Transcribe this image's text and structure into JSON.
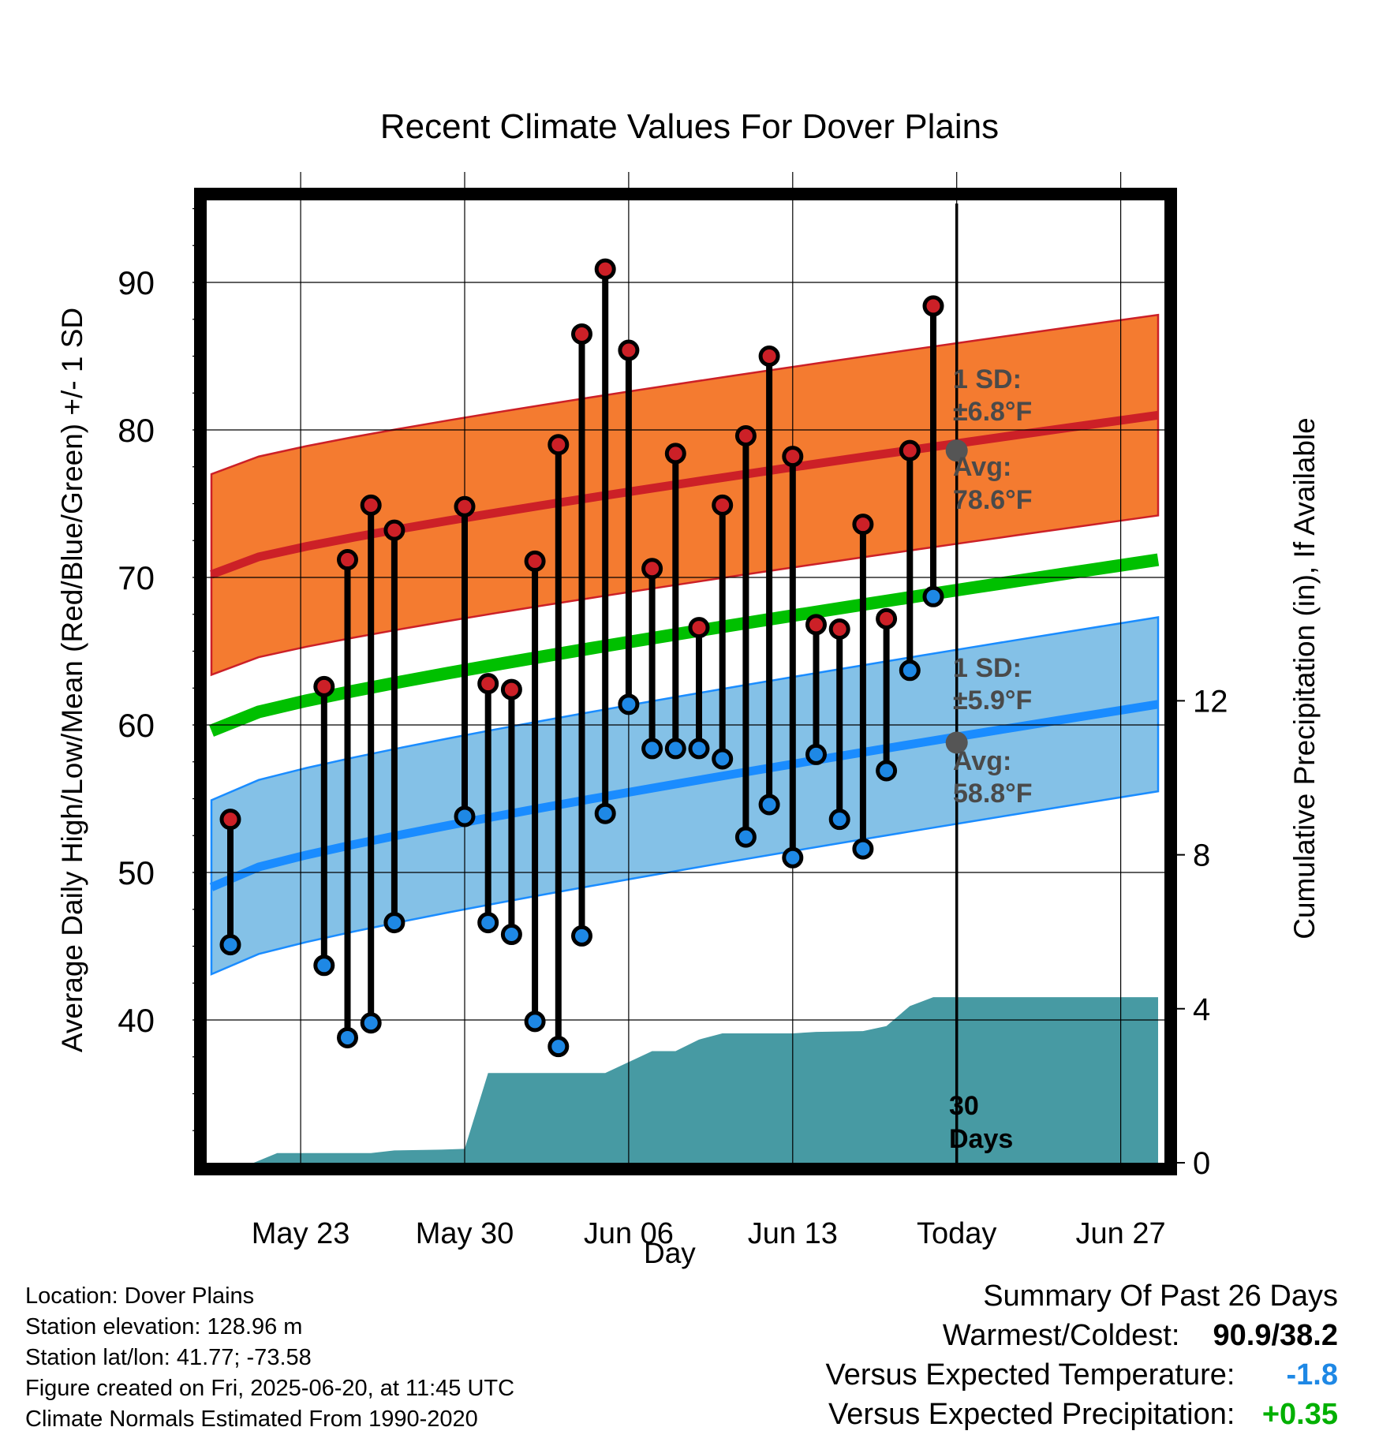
{
  "title": "Recent Climate Values For Dover Plains",
  "y_label_left": "Average Daily High/Low/Mean (Red/Blue/Green) +/- 1 SD",
  "y_label_right": "Cumulative Precipitation (in), If Available",
  "x_label": "Day",
  "colors": {
    "high_band": "#f47b30",
    "high_line": "#cc2027",
    "low_band": "#84c1e7",
    "low_line": "#1a8cff",
    "mean_line": "#00c000",
    "precip": "#479aa3",
    "high_marker": "#cc2027",
    "low_marker": "#1e88e5",
    "annotation": "#4a4a4a",
    "temp_diff": "#1e88e5",
    "precip_diff": "#00b000"
  },
  "chart_data": {
    "type": "line",
    "x_ticks": [
      "May 23",
      "May 30",
      "Jun 06",
      "Jun 13",
      "Today",
      "Jun 27"
    ],
    "y_ticks_left": [
      40,
      50,
      60,
      70,
      80,
      90
    ],
    "y_ticks_right": [
      0,
      4,
      8,
      12
    ],
    "ylim_left": [
      30,
      96
    ],
    "ylim_right": [
      0,
      25
    ],
    "days": [
      "2025-05-20",
      "2025-05-21",
      "2025-05-22",
      "2025-05-23",
      "2025-05-24",
      "2025-05-25",
      "2025-05-26",
      "2025-05-27",
      "2025-05-28",
      "2025-05-29",
      "2025-05-30",
      "2025-05-31",
      "2025-06-01",
      "2025-06-02",
      "2025-06-03",
      "2025-06-04",
      "2025-06-05",
      "2025-06-06",
      "2025-06-07",
      "2025-06-08",
      "2025-06-09",
      "2025-06-10",
      "2025-06-11",
      "2025-06-12",
      "2025-06-13",
      "2025-06-14",
      "2025-06-15",
      "2025-06-16",
      "2025-06-17",
      "2025-06-18",
      "2025-06-19",
      "2025-06-20",
      "2025-06-21",
      "2025-06-22",
      "2025-06-23",
      "2025-06-24",
      "2025-06-25",
      "2025-06-26",
      "2025-06-27",
      "2025-06-28",
      "2025-06-29",
      "2025-06-30"
    ],
    "today": "2025-06-20",
    "observations": [
      {
        "day": "2025-05-20",
        "high": 53.6,
        "low": 45.1
      },
      {
        "day": "2025-05-24",
        "high": 62.6,
        "low": 43.7
      },
      {
        "day": "2025-05-25",
        "high": 71.2,
        "low": 38.8
      },
      {
        "day": "2025-05-26",
        "high": 74.9,
        "low": 39.8
      },
      {
        "day": "2025-05-27",
        "high": 73.2,
        "low": 46.6
      },
      {
        "day": "2025-05-30",
        "high": 74.8,
        "low": 53.8
      },
      {
        "day": "2025-05-31",
        "high": 62.8,
        "low": 46.6
      },
      {
        "day": "2025-06-01",
        "high": 62.4,
        "low": 45.8
      },
      {
        "day": "2025-06-02",
        "high": 71.1,
        "low": 39.9
      },
      {
        "day": "2025-06-03",
        "high": 79.0,
        "low": 38.2
      },
      {
        "day": "2025-06-04",
        "high": 86.5,
        "low": 45.7
      },
      {
        "day": "2025-06-05",
        "high": 90.9,
        "low": 54.0
      },
      {
        "day": "2025-06-06",
        "high": 85.4,
        "low": 61.4
      },
      {
        "day": "2025-06-07",
        "high": 70.6,
        "low": 58.4
      },
      {
        "day": "2025-06-08",
        "high": 78.4,
        "low": 58.4
      },
      {
        "day": "2025-06-09",
        "high": 66.6,
        "low": 58.4
      },
      {
        "day": "2025-06-10",
        "high": 74.9,
        "low": 57.7
      },
      {
        "day": "2025-06-11",
        "high": 79.6,
        "low": 52.4
      },
      {
        "day": "2025-06-12",
        "high": 85.0,
        "low": 54.6
      },
      {
        "day": "2025-06-13",
        "high": 78.2,
        "low": 51.0
      },
      {
        "day": "2025-06-14",
        "high": 66.8,
        "low": 58.0
      },
      {
        "day": "2025-06-15",
        "high": 66.5,
        "low": 53.6
      },
      {
        "day": "2025-06-16",
        "high": 73.6,
        "low": 51.6
      },
      {
        "day": "2025-06-17",
        "high": 67.2,
        "low": 56.9
      },
      {
        "day": "2025-06-18",
        "high": 78.6,
        "low": 63.7
      },
      {
        "day": "2025-06-19",
        "high": 88.4,
        "low": 68.7
      }
    ],
    "normal_high": {
      "start": 70.2,
      "end": 81.0
    },
    "normal_high_sd": 6.8,
    "normal_low": {
      "start": 49.0,
      "end": 61.4
    },
    "normal_low_sd": 5.9,
    "normal_mean": {
      "start": 59.6,
      "end": 71.2
    },
    "cumulative_precip": [
      {
        "day": "2025-05-20",
        "value": 0.0
      },
      {
        "day": "2025-05-21",
        "value": 0.0
      },
      {
        "day": "2025-05-22",
        "value": 0.25
      },
      {
        "day": "2025-05-23",
        "value": 0.25
      },
      {
        "day": "2025-05-26",
        "value": 0.25
      },
      {
        "day": "2025-05-27",
        "value": 0.32
      },
      {
        "day": "2025-05-29",
        "value": 0.34
      },
      {
        "day": "2025-05-30",
        "value": 0.36
      },
      {
        "day": "2025-05-31",
        "value": 2.33
      },
      {
        "day": "2025-06-05",
        "value": 2.33
      },
      {
        "day": "2025-06-07",
        "value": 2.9
      },
      {
        "day": "2025-06-08",
        "value": 2.9
      },
      {
        "day": "2025-06-09",
        "value": 3.2
      },
      {
        "day": "2025-06-10",
        "value": 3.36
      },
      {
        "day": "2025-06-13",
        "value": 3.36
      },
      {
        "day": "2025-06-14",
        "value": 3.4
      },
      {
        "day": "2025-06-16",
        "value": 3.42
      },
      {
        "day": "2025-06-17",
        "value": 3.55
      },
      {
        "day": "2025-06-18",
        "value": 4.07
      },
      {
        "day": "2025-06-19",
        "value": 4.3
      },
      {
        "day": "2025-06-30",
        "value": 4.3
      }
    ],
    "annotations": {
      "high_sd_label": "1 SD:",
      "high_sd_value": "±6.8°F",
      "high_avg_label": "Avg:",
      "high_avg_value": "78.6°F",
      "low_sd_label": "1 SD:",
      "low_sd_value": "±5.9°F",
      "low_avg_label": "Avg:",
      "low_avg_value": "58.8°F",
      "today_high_avg": 78.6,
      "today_low_avg": 58.8,
      "window_label_1": "30",
      "window_label_2": "Days"
    }
  },
  "station_info": [
    "Location: Dover Plains",
    "Station elevation: 128.96 m",
    "Station lat/lon: 41.77; -73.58",
    "Figure created on Fri, 2025-06-20, at 11:45 UTC",
    "Climate Normals Estimated From 1990-2020"
  ],
  "summary": {
    "title": "Summary Of Past 26 Days",
    "warm_cold_label": "Warmest/Coldest:",
    "warm_cold_value": "90.9/38.2",
    "temp_label": "Versus Expected Temperature:",
    "temp_value": "-1.8",
    "precip_label": "Versus Expected Precipitation:",
    "precip_value": "+0.35"
  }
}
